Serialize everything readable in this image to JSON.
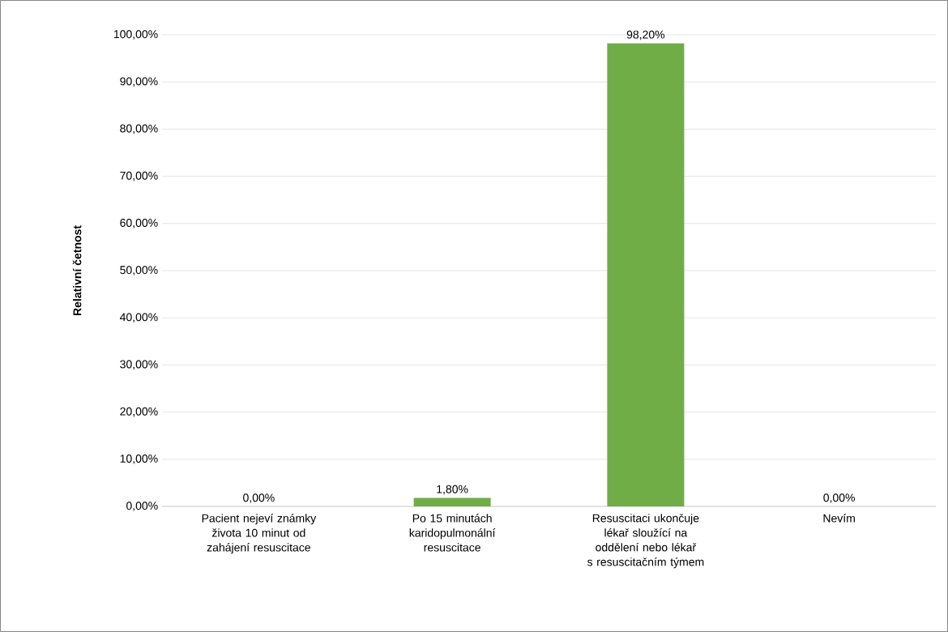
{
  "chart_data": {
    "type": "bar",
    "ylabel": "Relativní četnost",
    "categories": [
      "Pacient nejeví známky života 10 minut od zahájení resuscitace",
      "Po 15 minutách karidopulmonální resuscitace",
      "Resuscitaci ukončuje lékař sloužící na oddělení nebo lékař s resuscitačním týmem",
      "Nevím"
    ],
    "values": [
      0,
      1.8,
      98.2,
      0
    ],
    "value_labels": [
      "0,00%",
      "1,80%",
      "98,20%",
      "0,00%"
    ],
    "color": "#70ad47",
    "ylim": [
      0,
      100
    ],
    "yticks": [
      {
        "value": 0,
        "label": "0,00%"
      },
      {
        "value": 10,
        "label": "10,00%"
      },
      {
        "value": 20,
        "label": "20,00%"
      },
      {
        "value": 30,
        "label": "30,00%"
      },
      {
        "value": 40,
        "label": "40,00%"
      },
      {
        "value": 50,
        "label": "50,00%"
      },
      {
        "value": 60,
        "label": "60,00%"
      },
      {
        "value": 70,
        "label": "70,00%"
      },
      {
        "value": 80,
        "label": "80,00%"
      },
      {
        "value": 90,
        "label": "90,00%"
      },
      {
        "value": 100,
        "label": "100,00%"
      }
    ],
    "grid": "y"
  }
}
